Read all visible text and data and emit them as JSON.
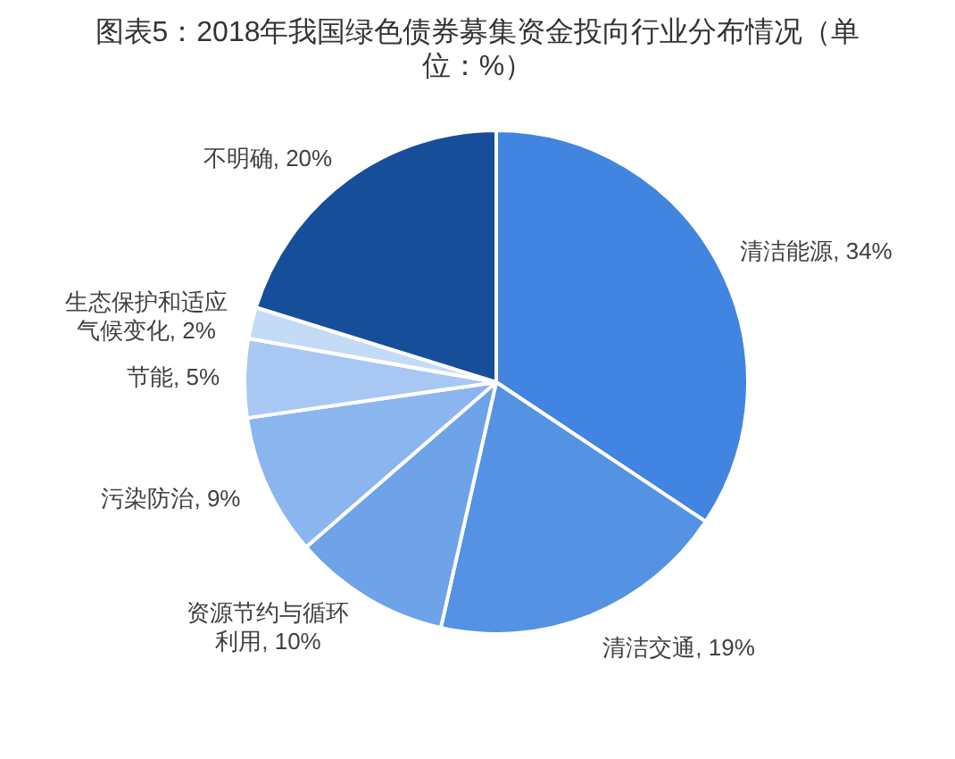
{
  "chart_data": {
    "type": "pie",
    "title": "图表5：2018年我国绿色债券募集资金投向行业分布情况（单位：%）",
    "categories": [
      "清洁能源",
      "清洁交通",
      "资源节约与循环利用",
      "污染防治",
      "节能",
      "生态保护和适应气候变化",
      "不明确"
    ],
    "values": [
      34,
      19,
      10,
      9,
      5,
      2,
      20
    ],
    "value_labels": [
      "34%",
      "19%",
      "10%",
      "9%",
      "5%",
      "2%",
      "20%"
    ],
    "colors": [
      "#4285e0",
      "#5592e4",
      "#6ea3e9",
      "#8bb5ee",
      "#a8c8f3",
      "#c4dbf8",
      "#174e99"
    ]
  }
}
